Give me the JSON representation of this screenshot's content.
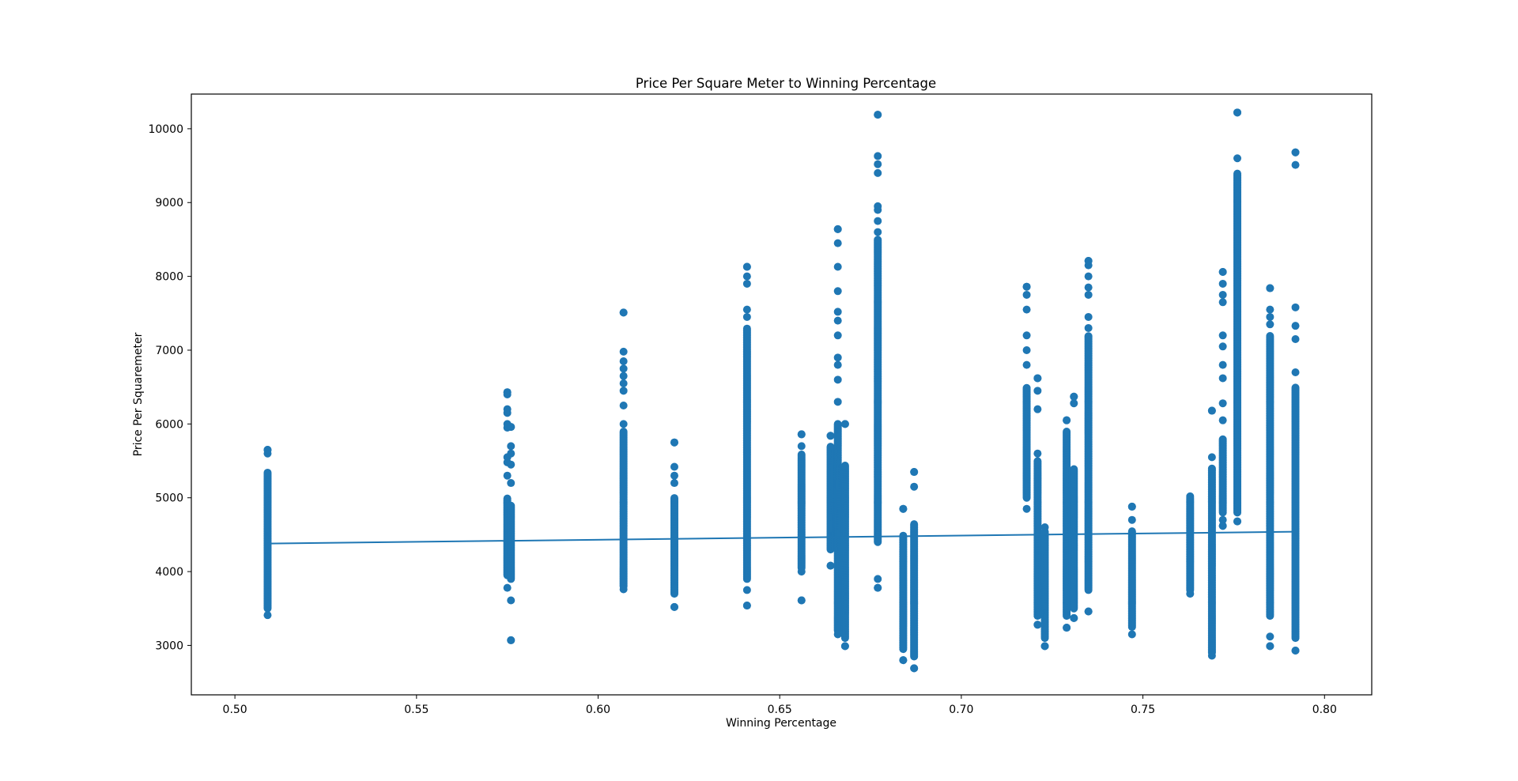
{
  "chart_data": {
    "type": "scatter",
    "title": "Price Per Square Meter to Winning Percentage",
    "xlabel": "Winning Percentage",
    "ylabel": "Price Per Squaremeter",
    "xlim": [
      0.488,
      0.813
    ],
    "ylim": [
      2330,
      10470
    ],
    "xticks": [
      "0.50",
      "0.55",
      "0.60",
      "0.65",
      "0.70",
      "0.75",
      "0.80"
    ],
    "yticks": [
      "3000",
      "4000",
      "5000",
      "6000",
      "7000",
      "8000",
      "9000",
      "10000"
    ],
    "grid": false,
    "legend": "none",
    "colors": {
      "points": "#1f77b4",
      "line": "#1f77b4"
    },
    "series": [
      {
        "type": "scatter",
        "points": [
          {
            "x": 0.509,
            "min": 3410,
            "max": 5650,
            "dense": [
              3500,
              5350
            ],
            "outliers": [
              5600,
              5650
            ]
          },
          {
            "x": 0.575,
            "min": 3780,
            "max": 6430,
            "dense": [
              3950,
              5000
            ],
            "outliers": [
              5300,
              5480,
              5550,
              5950,
              6000,
              6150,
              6200,
              6400,
              6430
            ]
          },
          {
            "x": 0.576,
            "min": 3070,
            "max": 5960,
            "dense": [
              3900,
              4900
            ],
            "outliers": [
              3070,
              3610,
              5200,
              5450,
              5600,
              5700,
              5960
            ]
          },
          {
            "x": 0.607,
            "min": 3760,
            "max": 7510,
            "dense": [
              3800,
              5900
            ],
            "outliers": [
              6000,
              6250,
              6450,
              6550,
              6650,
              6750,
              6850,
              6980,
              7510
            ]
          },
          {
            "x": 0.621,
            "min": 3520,
            "max": 5750,
            "dense": [
              3700,
              5000
            ],
            "outliers": [
              3520,
              5200,
              5300,
              5420,
              5750
            ]
          },
          {
            "x": 0.641,
            "min": 3540,
            "max": 8130,
            "dense": [
              3900,
              7300
            ],
            "outliers": [
              3540,
              3750,
              7450,
              7550,
              7900,
              8000,
              8130
            ]
          },
          {
            "x": 0.656,
            "min": 3610,
            "max": 5860,
            "dense": [
              4050,
              5600
            ],
            "outliers": [
              3610,
              4000,
              5700,
              5860
            ]
          },
          {
            "x": 0.664,
            "min": 4080,
            "max": 5840,
            "dense": [
              4300,
              5700
            ],
            "outliers": [
              4080,
              5840
            ]
          },
          {
            "x": 0.666,
            "min": 3150,
            "max": 8640,
            "dense": [
              3200,
              6000
            ],
            "outliers": [
              6300,
              6600,
              6800,
              6900,
              7200,
              7400,
              7520,
              7800,
              8130,
              8450,
              8640
            ]
          },
          {
            "x": 0.668,
            "min": 2990,
            "max": 6000,
            "dense": [
              3100,
              5450
            ],
            "outliers": [
              2990,
              6000
            ]
          },
          {
            "x": 0.677,
            "min": 3780,
            "max": 10190,
            "dense": [
              4400,
              8500
            ],
            "outliers": [
              3780,
              3900,
              8600,
              8750,
              8900,
              8950,
              9400,
              9520,
              9630,
              10190
            ]
          },
          {
            "x": 0.684,
            "min": 2800,
            "max": 4850,
            "dense": [
              2950,
              4500
            ],
            "outliers": [
              2800,
              4850
            ]
          },
          {
            "x": 0.687,
            "min": 2690,
            "max": 5350,
            "dense": [
              2850,
              4650
            ],
            "outliers": [
              2690,
              5150,
              5350
            ]
          },
          {
            "x": 0.718,
            "min": 4850,
            "max": 7860,
            "dense": [
              5000,
              6500
            ],
            "outliers": [
              6800,
              7000,
              7200,
              7550,
              7750,
              7860
            ]
          },
          {
            "x": 0.721,
            "min": 3280,
            "max": 6620,
            "dense": [
              3400,
              5500
            ],
            "outliers": [
              3280,
              5600,
              6200,
              6450,
              6620
            ]
          },
          {
            "x": 0.723,
            "min": 2990,
            "max": 4600,
            "dense": [
              3100,
              4550
            ],
            "outliers": [
              2990
            ]
          },
          {
            "x": 0.729,
            "min": 3240,
            "max": 6050,
            "dense": [
              3400,
              5900
            ],
            "outliers": [
              3240,
              6050
            ]
          },
          {
            "x": 0.731,
            "min": 3370,
            "max": 6370,
            "dense": [
              3500,
              5400
            ],
            "outliers": [
              3370,
              6280,
              6370
            ]
          },
          {
            "x": 0.735,
            "min": 3460,
            "max": 8210,
            "dense": [
              3750,
              7200
            ],
            "outliers": [
              3460,
              7300,
              7450,
              7750,
              7850,
              8000,
              8150,
              8210
            ]
          },
          {
            "x": 0.747,
            "min": 3150,
            "max": 4880,
            "dense": [
              3250,
              4550
            ],
            "outliers": [
              4700,
              4880
            ]
          },
          {
            "x": 0.763,
            "min": 3700,
            "max": 5020,
            "dense": [
              3750,
              5000
            ],
            "outliers": []
          },
          {
            "x": 0.769,
            "min": 2860,
            "max": 6180,
            "dense": [
              2900,
              5400
            ],
            "outliers": [
              5550,
              6180
            ]
          },
          {
            "x": 0.772,
            "min": 4620,
            "max": 8060,
            "dense": [
              4800,
              5800
            ],
            "outliers": [
              4620,
              4700,
              6050,
              6280,
              6620,
              6800,
              7050,
              7200,
              7650,
              7750,
              7900,
              8060
            ]
          },
          {
            "x": 0.776,
            "min": 4680,
            "max": 10220,
            "dense": [
              4800,
              9400
            ],
            "outliers": [
              4680,
              9600,
              10220
            ]
          },
          {
            "x": 0.785,
            "min": 2990,
            "max": 7840,
            "dense": [
              3400,
              7200
            ],
            "outliers": [
              2990,
              3120,
              7350,
              7450,
              7550,
              7840
            ]
          },
          {
            "x": 0.792,
            "min": 2930,
            "max": 9680,
            "dense": [
              3100,
              6500
            ],
            "outliers": [
              2930,
              6700,
              7150,
              7330,
              7580,
              9510,
              9680
            ]
          }
        ]
      },
      {
        "type": "line",
        "x": [
          0.509,
          0.792
        ],
        "y": [
          4380,
          4540
        ]
      }
    ]
  }
}
